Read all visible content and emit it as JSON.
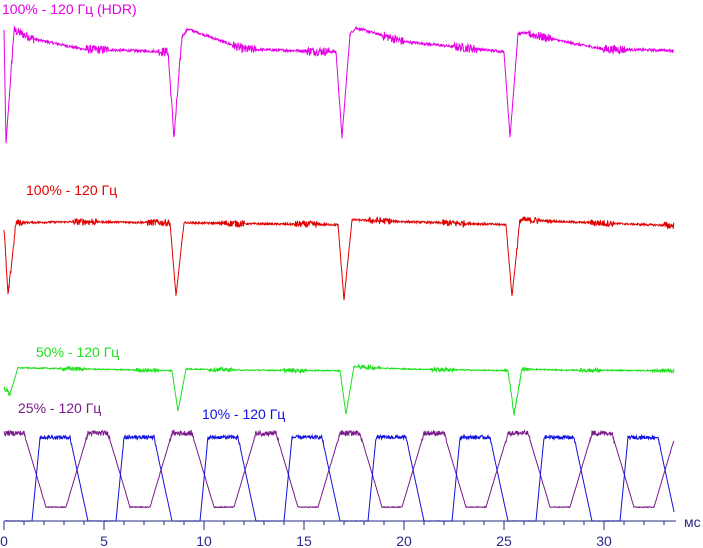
{
  "chart_data": {
    "type": "line",
    "title": "",
    "xlabel": "мс",
    "ylabel": "",
    "xlim": [
      0,
      33.5
    ],
    "grid": false,
    "x_ticks": [
      0,
      5,
      10,
      15,
      20,
      25,
      30
    ],
    "x_tick_labels": [
      "0",
      "5",
      "10",
      "15",
      "20",
      "25",
      "30"
    ],
    "series": [
      {
        "name": "100% - 120 Гц (HDR)",
        "color": "#e600e6",
        "pulse_times_ms": [
          0.1,
          8.5,
          16.9,
          25.3
        ],
        "x": [
          0,
          0.1,
          0.5,
          1.5,
          4,
          8.2,
          8.5,
          8.9,
          9.2,
          12,
          16.6,
          16.9,
          17.3,
          17.6,
          20,
          25.0,
          25.3,
          25.7,
          26.0,
          28,
          30,
          33.5
        ],
        "y": [
          0.95,
          0.05,
          0.95,
          0.88,
          0.8,
          0.78,
          0.1,
          0.9,
          0.96,
          0.8,
          0.78,
          0.1,
          0.92,
          0.97,
          0.86,
          0.78,
          0.1,
          0.92,
          0.93,
          0.86,
          0.8,
          0.79
        ]
      },
      {
        "name": "100% - 120 Гц",
        "color": "#e00000",
        "pulse_times_ms": [
          0.2,
          8.6,
          17.0,
          25.4
        ],
        "x": [
          0,
          0.2,
          0.6,
          4,
          8.3,
          8.6,
          9.0,
          12,
          16.7,
          17.0,
          17.4,
          20,
          25.1,
          25.4,
          25.8,
          28,
          33.5
        ],
        "y": [
          0.8,
          0.1,
          0.85,
          0.86,
          0.85,
          0.1,
          0.85,
          0.84,
          0.83,
          0.06,
          0.88,
          0.86,
          0.83,
          0.1,
          0.88,
          0.86,
          0.82
        ]
      },
      {
        "name": "50% - 120 Гц",
        "color": "#20e020",
        "pulse_times_ms": [
          0.3,
          8.7,
          17.1,
          25.5
        ],
        "x": [
          0,
          0.3,
          0.7,
          4,
          8.4,
          8.7,
          9.1,
          12,
          16.8,
          17.1,
          17.5,
          20,
          25.2,
          25.5,
          25.9,
          28,
          33.5
        ],
        "y": [
          0.55,
          0.45,
          0.9,
          0.88,
          0.85,
          0.15,
          0.88,
          0.86,
          0.85,
          0.1,
          0.92,
          0.88,
          0.85,
          0.1,
          0.88,
          0.86,
          0.85
        ]
      },
      {
        "name": "25% - 120 Гц",
        "color": "#7a1a8a",
        "period_ms": 4.2,
        "x": [
          0,
          1.0,
          2.1,
          3.1,
          4.2
        ],
        "y": [
          0.94,
          0.94,
          0.08,
          0.08,
          0.94
        ]
      },
      {
        "name": "10% - 120 Гц",
        "color": "#1010e0",
        "period_ms": 4.2,
        "x": [
          0,
          1.4,
          1.8,
          3.3,
          4.2
        ],
        "y": [
          0.0,
          0.0,
          0.9,
          0.9,
          0.0
        ]
      }
    ]
  }
}
